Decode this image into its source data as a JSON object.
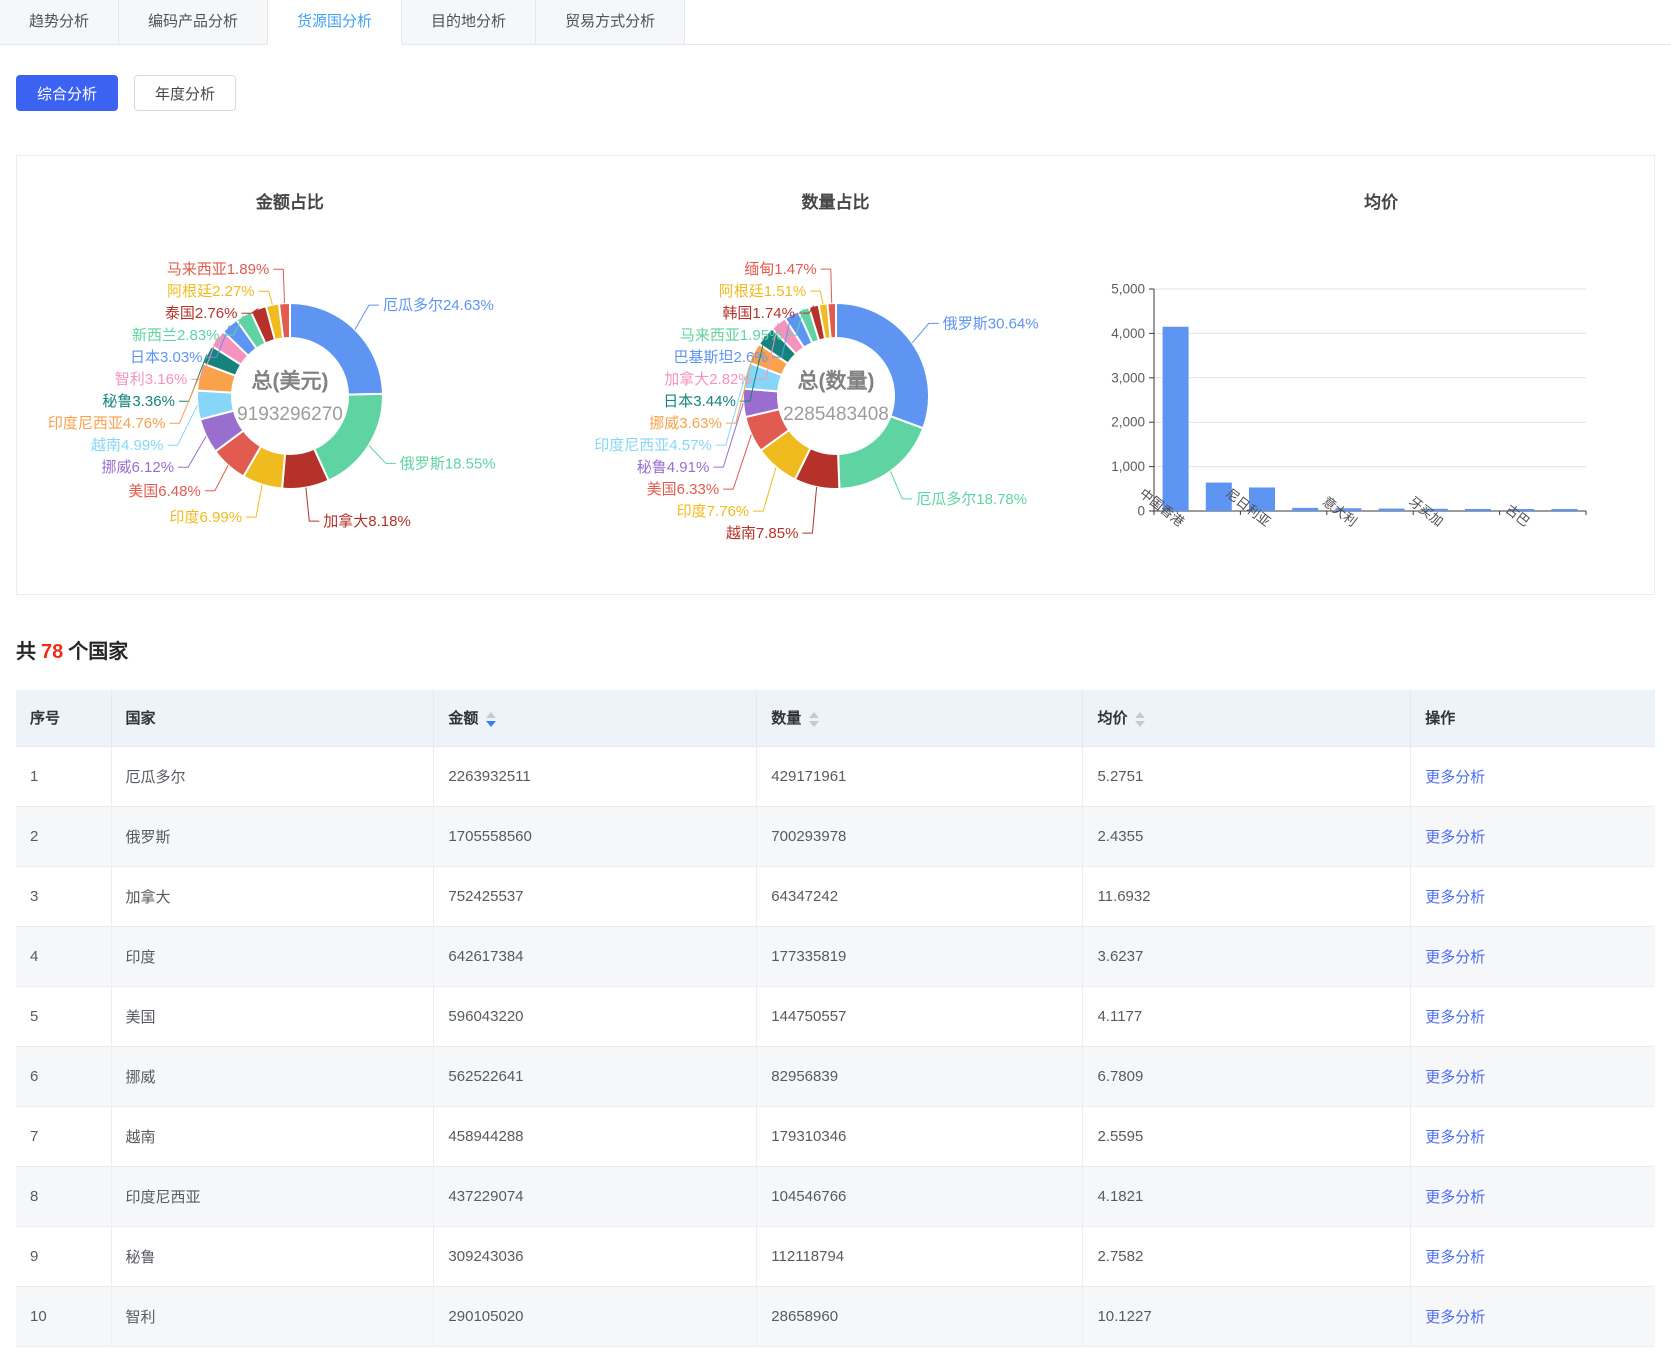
{
  "tabs": [
    {
      "label": "趋势分析",
      "active": false
    },
    {
      "label": "编码产品分析",
      "active": false
    },
    {
      "label": "货源国分析",
      "active": true
    },
    {
      "label": "目的地分析",
      "active": false
    },
    {
      "label": "贸易方式分析",
      "active": false
    }
  ],
  "filters": {
    "composite_label": "综合分析",
    "annual_label": "年度分析"
  },
  "colors": {
    "primary_button": "#3b62f1",
    "tab_active": "#41a1f6",
    "link": "#4c6bf2",
    "count_red": "#ee2b1b",
    "bar": "#5e95f2",
    "donut_center_label": "#828282",
    "donut_center_value": "#9c9c9c"
  },
  "palette": [
    "#5E95F2",
    "#5FD3A2",
    "#B5322B",
    "#F0BB1E",
    "#E25B50",
    "#9A6ECE",
    "#87D5F7",
    "#F9A14B",
    "#15837C",
    "#F593BF"
  ],
  "chart_data": [
    {
      "type": "pie",
      "title": "金额占比",
      "center_label": "总(美元)",
      "center_value": "9193296270",
      "unit": "%",
      "slices": [
        {
          "name": "厄瓜多尔",
          "pct": 24.63
        },
        {
          "name": "俄罗斯",
          "pct": 18.55
        },
        {
          "name": "加拿大",
          "pct": 8.18
        },
        {
          "name": "印度",
          "pct": 6.99
        },
        {
          "name": "美国",
          "pct": 6.48
        },
        {
          "name": "挪威",
          "pct": 6.12
        },
        {
          "name": "越南",
          "pct": 4.99
        },
        {
          "name": "印度尼西亚",
          "pct": 4.76
        },
        {
          "name": "秘鲁",
          "pct": 3.36
        },
        {
          "name": "智利",
          "pct": 3.16
        },
        {
          "name": "日本",
          "pct": 3.03
        },
        {
          "name": "新西兰",
          "pct": 2.83
        },
        {
          "name": "泰国",
          "pct": 2.76
        },
        {
          "name": "阿根廷",
          "pct": 2.27
        },
        {
          "name": "马来西亚",
          "pct": 1.89
        }
      ]
    },
    {
      "type": "pie",
      "title": "数量占比",
      "center_label": "总(数量)",
      "center_value": "2285483408",
      "unit": "%",
      "slices": [
        {
          "name": "俄罗斯",
          "pct": 30.64
        },
        {
          "name": "厄瓜多尔",
          "pct": 18.78
        },
        {
          "name": "越南",
          "pct": 7.85
        },
        {
          "name": "印度",
          "pct": 7.76
        },
        {
          "name": "美国",
          "pct": 6.33
        },
        {
          "name": "秘鲁",
          "pct": 4.91
        },
        {
          "name": "印度尼西亚",
          "pct": 4.57
        },
        {
          "name": "挪威",
          "pct": 3.63
        },
        {
          "name": "日本",
          "pct": 3.44
        },
        {
          "name": "加拿大",
          "pct": 2.82
        },
        {
          "name": "巴基斯坦",
          "pct": 2.6
        },
        {
          "name": "马来西亚",
          "pct": 1.95
        },
        {
          "name": "韩国",
          "pct": 1.74
        },
        {
          "name": "阿根廷",
          "pct": 1.51
        },
        {
          "name": "缅甸",
          "pct": 1.47
        }
      ]
    },
    {
      "type": "bar",
      "title": "均价",
      "categories": [
        "中国香港",
        "",
        "尼日利亚",
        "",
        "意大利",
        "",
        "牙买加",
        "",
        "古巴",
        ""
      ],
      "values": [
        4150,
        640,
        530,
        70,
        62,
        55,
        50,
        46,
        42,
        40
      ],
      "ylim": [
        0,
        5000
      ],
      "ytick_interval": 1000,
      "grid": true,
      "legend": "none"
    }
  ],
  "summary": {
    "prefix": "共",
    "count": "78",
    "suffix": "个国家"
  },
  "table": {
    "columns": [
      {
        "key": "index",
        "label": "序号",
        "sortable": false,
        "sort": null
      },
      {
        "key": "country",
        "label": "国家",
        "sortable": false,
        "sort": null
      },
      {
        "key": "amount",
        "label": "金额",
        "sortable": true,
        "sort": "desc"
      },
      {
        "key": "quantity",
        "label": "数量",
        "sortable": true,
        "sort": null
      },
      {
        "key": "avg_price",
        "label": "均价",
        "sortable": true,
        "sort": null
      },
      {
        "key": "action",
        "label": "操作",
        "sortable": false,
        "sort": null
      }
    ],
    "action_label": "更多分析",
    "rows": [
      [
        "1",
        "厄瓜多尔",
        "2263932511",
        "429171961",
        "5.2751"
      ],
      [
        "2",
        "俄罗斯",
        "1705558560",
        "700293978",
        "2.4355"
      ],
      [
        "3",
        "加拿大",
        "752425537",
        "64347242",
        "11.6932"
      ],
      [
        "4",
        "印度",
        "642617384",
        "177335819",
        "3.6237"
      ],
      [
        "5",
        "美国",
        "596043220",
        "144750557",
        "4.1177"
      ],
      [
        "6",
        "挪威",
        "562522641",
        "82956839",
        "6.7809"
      ],
      [
        "7",
        "越南",
        "458944288",
        "179310346",
        "2.5595"
      ],
      [
        "8",
        "印度尼西亚",
        "437229074",
        "104546766",
        "4.1821"
      ],
      [
        "9",
        "秘鲁",
        "309243036",
        "112118794",
        "2.7582"
      ],
      [
        "10",
        "智利",
        "290105020",
        "28658960",
        "10.1227"
      ]
    ]
  }
}
